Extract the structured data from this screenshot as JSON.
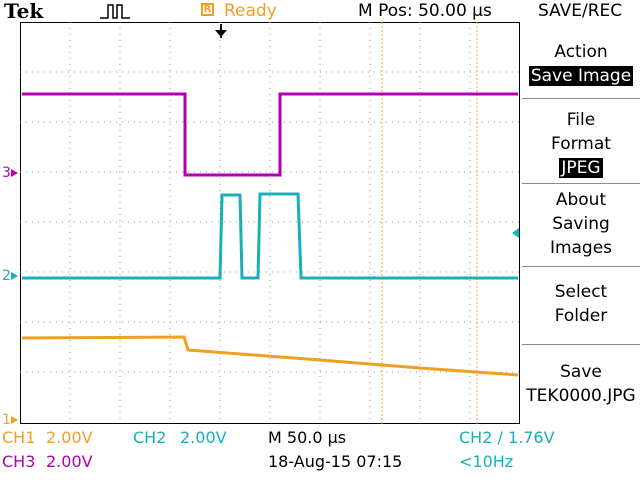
{
  "header": {
    "brand": "Tek",
    "trigger_icon": "trigger-pulse-icon",
    "status_box": "R",
    "status": "Ready",
    "position": "M Pos: 50.00 µs",
    "menu_title": "SAVE/REC"
  },
  "markers": {
    "ch3": "3",
    "ch2": "2",
    "ch1": "1"
  },
  "menu": {
    "action_label": "Action",
    "action_value": "Save Image",
    "file_format_label_1": "File",
    "file_format_label_2": "Format",
    "file_format_value": "JPEG",
    "about_1": "About",
    "about_2": "Saving",
    "about_3": "Images",
    "select_1": "Select",
    "select_2": "Folder",
    "save_label": "Save",
    "save_file": "TEK0000.JPG"
  },
  "footer": {
    "ch1_label": "CH1",
    "ch1_scale": "2.00V",
    "ch2_label": "CH2",
    "ch2_scale": "2.00V",
    "timebase": "M 50.0 µs",
    "trigger": "CH2 ∕ 1.76V",
    "ch3_label": "CH3",
    "ch3_scale": "2.00V",
    "date": "18-Aug-15 07:15",
    "freq": "<10Hz"
  },
  "colors": {
    "ch1": "#f0a020",
    "ch2": "#18b0b8",
    "ch3": "#b000b0",
    "cursor": "#f0a020"
  }
}
